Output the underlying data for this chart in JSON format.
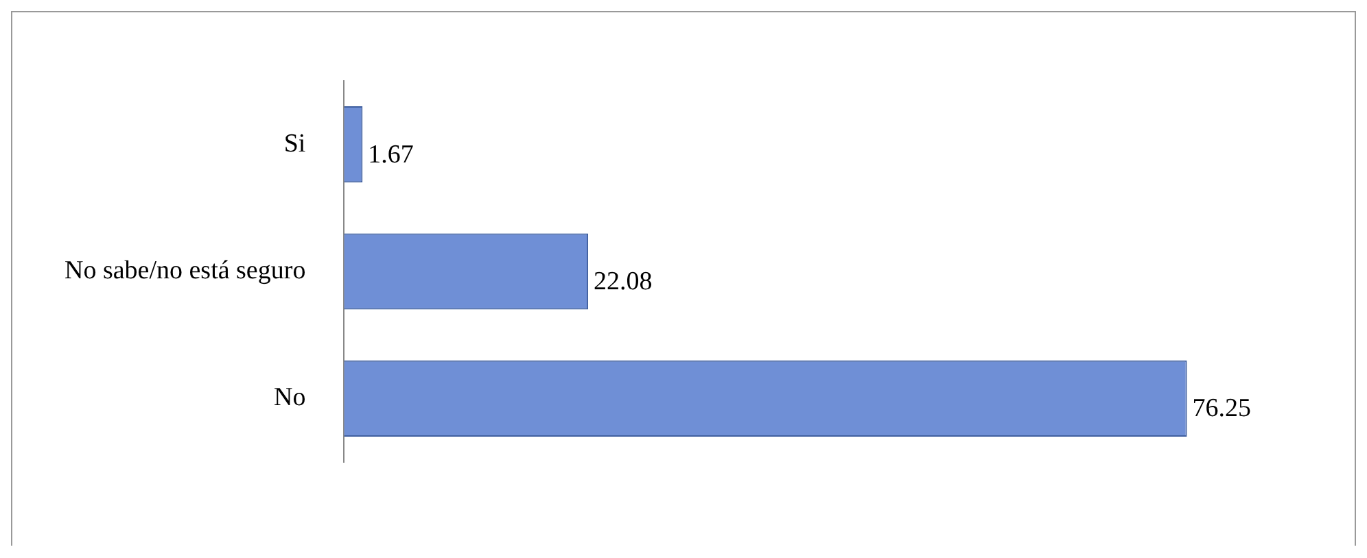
{
  "chart_data": {
    "type": "bar",
    "orientation": "horizontal",
    "categories": [
      "Si",
      "No sabe/no está seguro",
      "No"
    ],
    "values": [
      1.67,
      22.08,
      76.25
    ],
    "color": "#6f8fd6",
    "data_labels": true,
    "grid": false,
    "legend": false
  }
}
